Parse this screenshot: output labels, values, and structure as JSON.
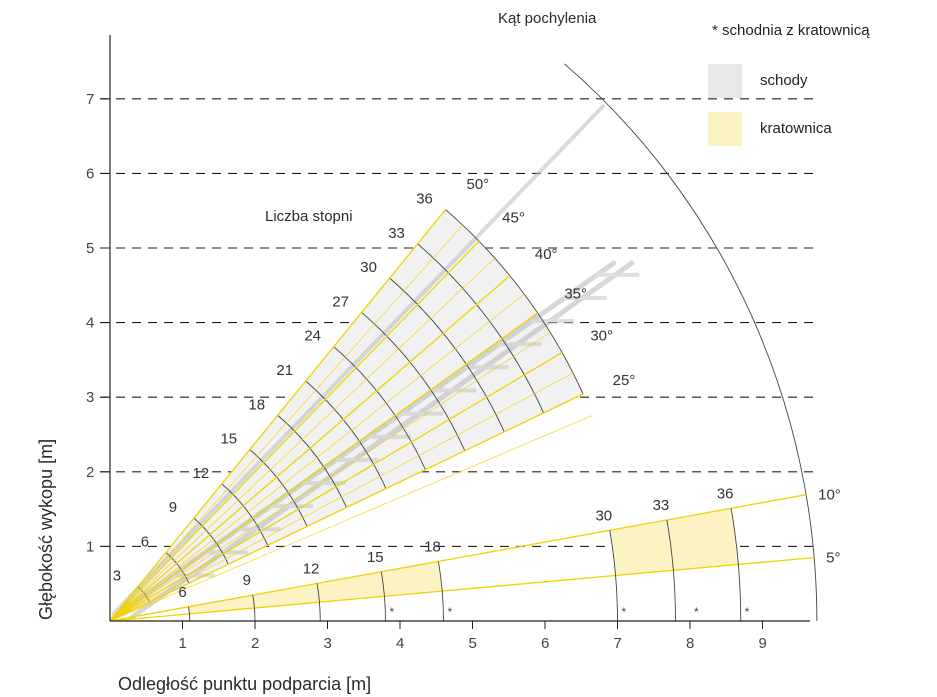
{
  "chart_data": {
    "type": "polar-ladder-chart",
    "title": "Kąt pochylenia",
    "xlabel": "Odległość punktu podparcia [m]",
    "ylabel": "Głębokość wykopu [m]",
    "xlim": [
      0,
      9.6
    ],
    "ylim": [
      0,
      7.6
    ],
    "x_ticks": [
      "1",
      "2",
      "3",
      "4",
      "5",
      "6",
      "7",
      "8",
      "9"
    ],
    "y_ticks": [
      "1",
      "2",
      "3",
      "4",
      "5",
      "6",
      "7"
    ],
    "grid": "horizontal dashed at y ticks",
    "legend": {
      "note": "* schodnia z kratownicą",
      "items": [
        {
          "label": "schody",
          "color": "#e8e8ea"
        },
        {
          "label": "kratownica",
          "color": "#fbf3c3"
        }
      ]
    },
    "steps_label": "Liczba stopni",
    "colors": {
      "ray": "#f2d200",
      "arc": "#444444",
      "grid": "#222222",
      "axis": "#222222"
    },
    "stairs": {
      "angle_min_deg": 25,
      "angle_max_deg": 50,
      "angles_deg": [
        25,
        30,
        35,
        40,
        45,
        50
      ],
      "angle_labels": [
        "25°",
        "30°",
        "35°",
        "40°",
        "45°",
        "50°"
      ],
      "steps": [
        3,
        6,
        9,
        12,
        15,
        18,
        21,
        24,
        27,
        30,
        33,
        36
      ],
      "radius_per_step_m": 0.2
    },
    "truss": {
      "angle_min_deg": 5,
      "angle_max_deg": 10,
      "angle_labels": [
        "5°",
        "10°"
      ],
      "outer_radius_m": 9.75,
      "segments": [
        {
          "steps": [
            6,
            9,
            12,
            15,
            18
          ],
          "radii_m": [
            1.1,
            2.0,
            2.9,
            3.8,
            4.6
          ],
          "filled_range": [
            1.1,
            4.6
          ],
          "label_radii_m": [
            1.1,
            2.0,
            2.9,
            3.8,
            4.6
          ]
        },
        {
          "steps": [
            30,
            33,
            36
          ],
          "radii_m": [
            7.0,
            7.8,
            8.7
          ],
          "filled_range": [
            7.0,
            8.7
          ],
          "label_radii_m": [
            7.0,
            7.8,
            8.7
          ]
        }
      ],
      "star_positions_m": [
        3.8,
        4.6,
        7.0,
        8.0,
        8.7
      ]
    }
  }
}
